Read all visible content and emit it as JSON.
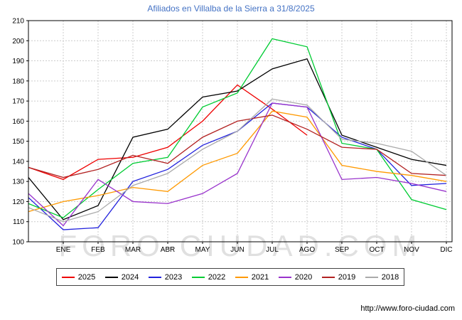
{
  "chart_data": {
    "type": "line",
    "title": "Afiliados en Villalba de la Sierra a 31/8/2025",
    "xlabel": "",
    "ylabel": "",
    "months": [
      "ENE",
      "FEB",
      "MAR",
      "ABR",
      "MAY",
      "JUN",
      "JUL",
      "AGO",
      "SEP",
      "OCT",
      "NOV",
      "DIC"
    ],
    "ylim": [
      100,
      210
    ],
    "ytick_step": 10,
    "grid": true,
    "legend_position": "bottom",
    "watermark": "FORO-CIUDAD.COM",
    "colors": {
      "title": "#4472c4",
      "grid": "#cccccc",
      "axis": "#000000",
      "watermark": "#d4d4d4"
    },
    "series": [
      {
        "name": "2025",
        "color": "#ee0000",
        "axis_start": 137,
        "values": [
          131,
          141,
          142,
          147,
          160,
          178,
          166,
          153,
          null,
          null,
          null,
          null
        ]
      },
      {
        "name": "2024",
        "color": "#000000",
        "axis_start": 132,
        "values": [
          111,
          118,
          152,
          156,
          172,
          175,
          186,
          191,
          153,
          147,
          141,
          138
        ]
      },
      {
        "name": "2023",
        "color": "#2222dd",
        "axis_start": 122,
        "values": [
          106,
          107,
          130,
          136,
          148,
          155,
          169,
          167,
          152,
          146,
          128,
          129
        ]
      },
      {
        "name": "2022",
        "color": "#00cc33",
        "axis_start": 119,
        "values": [
          112,
          126,
          139,
          142,
          167,
          174,
          201,
          197,
          149,
          146,
          121,
          116
        ]
      },
      {
        "name": "2021",
        "color": "#ff9900",
        "axis_start": 115,
        "values": [
          120,
          123,
          127,
          125,
          138,
          144,
          165,
          162,
          138,
          135,
          133,
          130
        ]
      },
      {
        "name": "2020",
        "color": "#9933cc",
        "axis_start": 124,
        "values": [
          108,
          131,
          120,
          119,
          124,
          134,
          169,
          167,
          131,
          132,
          129,
          125
        ]
      },
      {
        "name": "2019",
        "color": "#b22222",
        "axis_start": 137,
        "values": [
          132,
          136,
          143,
          139,
          152,
          160,
          163,
          156,
          147,
          146,
          134,
          133
        ]
      },
      {
        "name": "2018",
        "color": "#aaaaaa",
        "axis_start": 117,
        "values": [
          110,
          115,
          128,
          134,
          146,
          155,
          171,
          168,
          151,
          149,
          145,
          133
        ]
      }
    ]
  },
  "footer": {
    "url": "http://www.foro-ciudad.com"
  }
}
